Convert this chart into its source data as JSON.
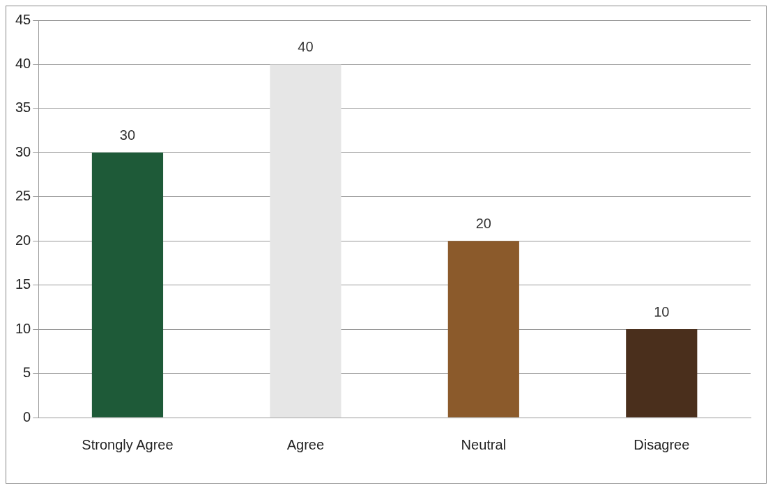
{
  "chart_data": {
    "type": "bar",
    "categories": [
      "Strongly Agree",
      "Agree",
      "Neutral",
      "Disagree"
    ],
    "values": [
      30,
      40,
      20,
      10
    ],
    "colors": [
      "#1e5a38",
      "#e6e6e6",
      "#8b5a2b",
      "#4a2f1c"
    ],
    "ylim": [
      0,
      45
    ],
    "yticks": [
      0,
      5,
      10,
      15,
      20,
      25,
      30,
      35,
      40,
      45
    ],
    "grid": "y",
    "data_labels": true,
    "legend": false
  }
}
